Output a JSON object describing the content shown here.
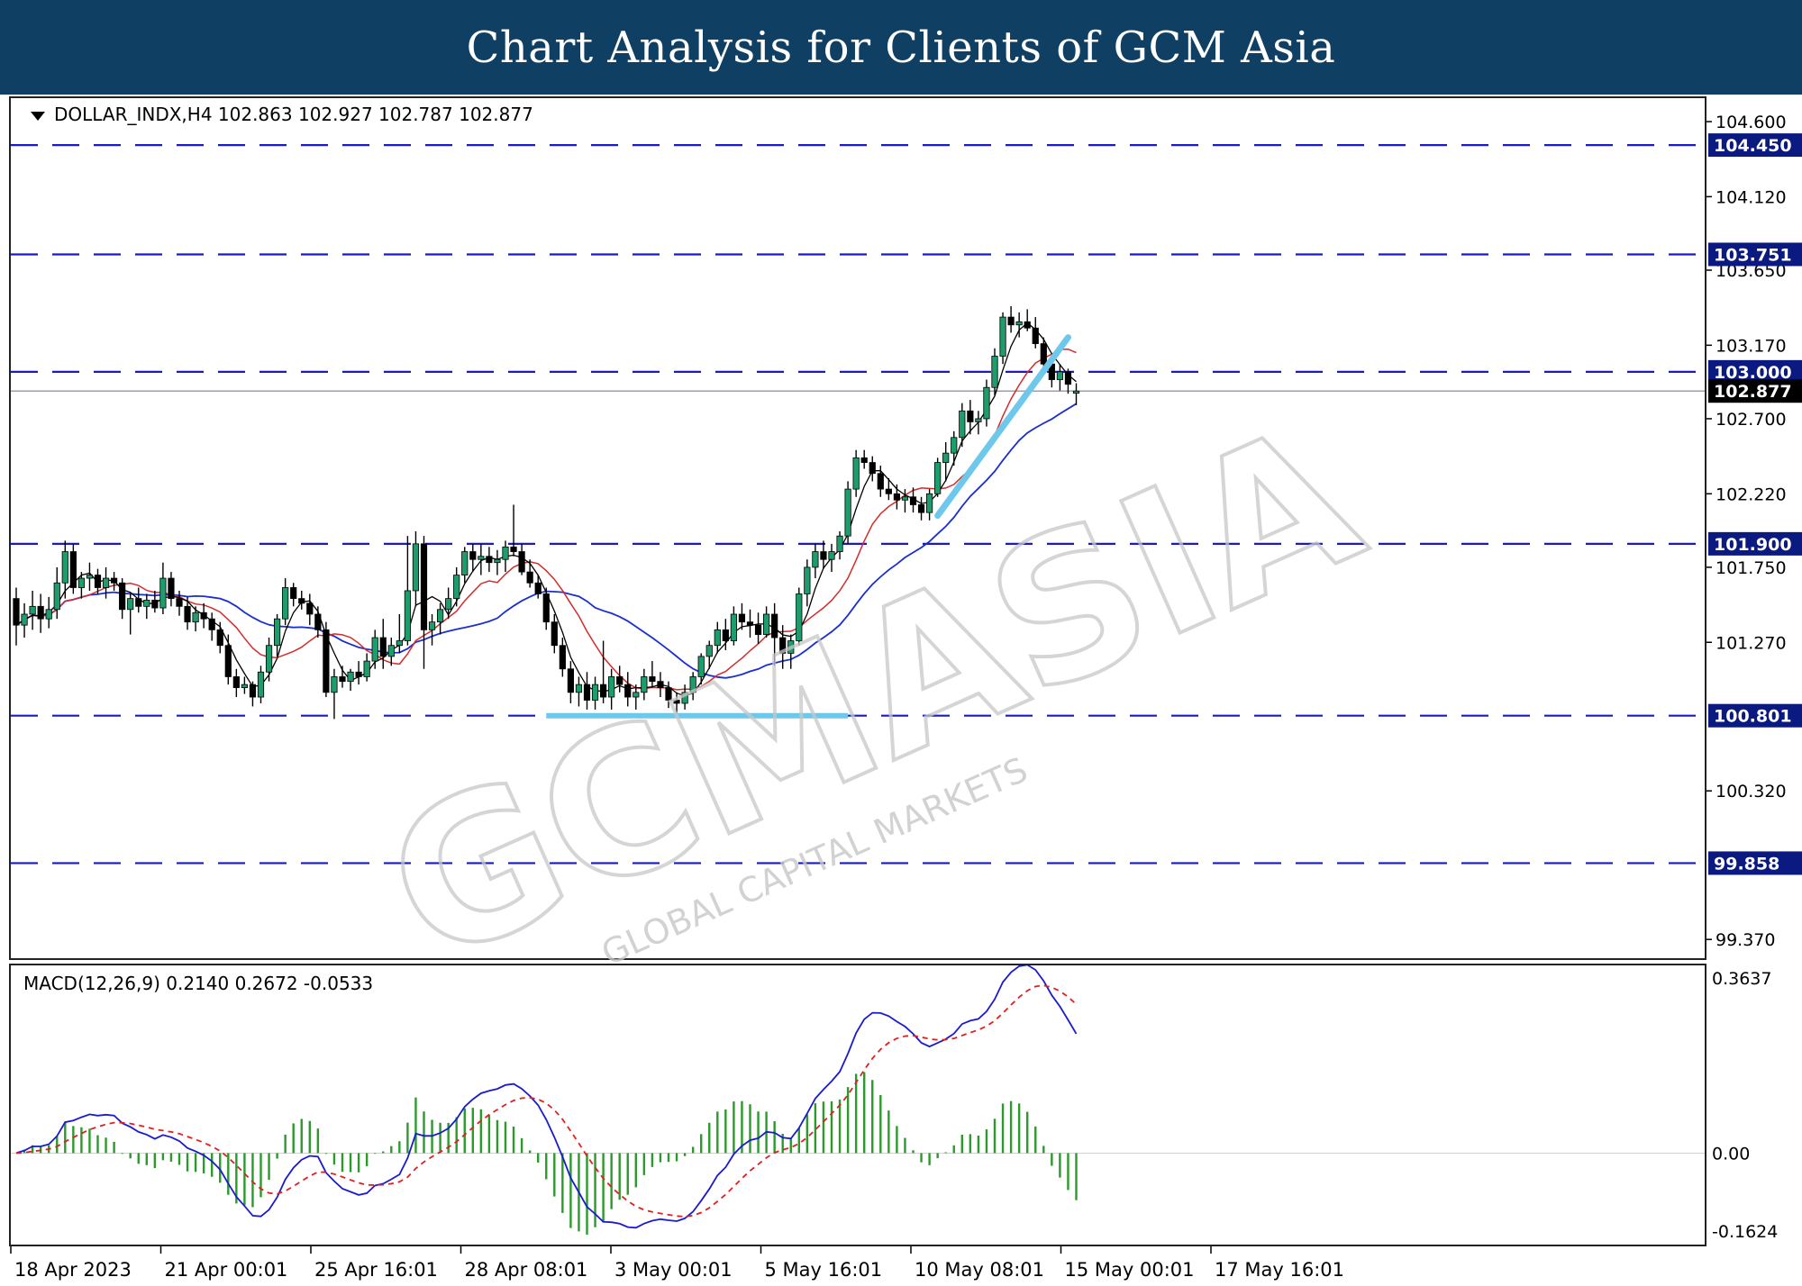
{
  "banner": {
    "title": "Chart Analysis for Clients of GCM Asia"
  },
  "watermark": {
    "brand": "GCMASIA",
    "tagline": "GLOBAL CAPITAL MARKETS"
  },
  "colors": {
    "banner_bg": "#0f3f63",
    "level_line": "#1a1ac8",
    "level_label_bg": "#0a1a80",
    "bull_candle": "#1f9c6b",
    "bear_candle": "#000000",
    "ma_fast": "#000000",
    "ma_mid": "#d42b2b",
    "ma_slow": "#1a2fd0",
    "highlight": "#6ec8ec",
    "macd_line": "#1a1ad0",
    "macd_signal": "#e02020",
    "macd_hist": "#2a9a2a"
  },
  "chart_data": [
    {
      "type": "candlestick",
      "symbol": "DOLLAR_INDX,H4",
      "header": "DOLLAR_INDX,H4  102.863 102.927 102.787 102.877",
      "ohlc": {
        "open": "102.863",
        "high": "102.927",
        "low": "102.787",
        "close": "102.877"
      },
      "ylim": [
        99.25,
        104.75
      ],
      "y_ticks": [
        "104.600",
        "104.120",
        "103.650",
        "103.170",
        "102.700",
        "102.220",
        "101.750",
        "101.270",
        "100.320",
        "99.370"
      ],
      "levels": [
        "104.450",
        "103.751",
        "103.000",
        "101.900",
        "100.801",
        "99.858"
      ],
      "current_price": "102.877",
      "x_ticks": [
        "18 Apr 2023",
        "21 Apr 00:01",
        "25 Apr 16:01",
        "28 Apr 08:01",
        "3 May 00:01",
        "5 May 16:01",
        "10 May 08:01",
        "15 May 00:01",
        "17 May 16:01"
      ],
      "support_band": {
        "value": 100.801,
        "from_bar": 65,
        "to_bar": 102
      },
      "trendline": {
        "from_bar": 113,
        "from_price": 102.08,
        "to_bar": 129,
        "to_price": 103.22
      },
      "candles": [
        [
          101.55,
          101.62,
          101.25,
          101.38
        ],
        [
          101.38,
          101.52,
          101.3,
          101.45
        ],
        [
          101.45,
          101.6,
          101.35,
          101.5
        ],
        [
          101.5,
          101.58,
          101.33,
          101.42
        ],
        [
          101.42,
          101.56,
          101.36,
          101.48
        ],
        [
          101.48,
          101.75,
          101.42,
          101.65
        ],
        [
          101.65,
          101.92,
          101.55,
          101.85
        ],
        [
          101.85,
          101.9,
          101.58,
          101.62
        ],
        [
          101.62,
          101.72,
          101.55,
          101.68
        ],
        [
          101.68,
          101.78,
          101.6,
          101.7
        ],
        [
          101.7,
          101.74,
          101.58,
          101.62
        ],
        [
          101.62,
          101.75,
          101.55,
          101.68
        ],
        [
          101.68,
          101.72,
          101.6,
          101.65
        ],
        [
          101.65,
          101.68,
          101.42,
          101.48
        ],
        [
          101.48,
          101.58,
          101.32,
          101.55
        ],
        [
          101.55,
          101.62,
          101.46,
          101.5
        ],
        [
          101.5,
          101.58,
          101.42,
          101.54
        ],
        [
          101.54,
          101.6,
          101.46,
          101.49
        ],
        [
          101.49,
          101.78,
          101.45,
          101.68
        ],
        [
          101.68,
          101.72,
          101.5,
          101.55
        ],
        [
          101.55,
          101.6,
          101.44,
          101.5
        ],
        [
          101.5,
          101.56,
          101.35,
          101.4
        ],
        [
          101.4,
          101.5,
          101.34,
          101.46
        ],
        [
          101.46,
          101.52,
          101.36,
          101.42
        ],
        [
          101.42,
          101.46,
          101.28,
          101.35
        ],
        [
          101.35,
          101.4,
          101.2,
          101.25
        ],
        [
          101.25,
          101.32,
          101.0,
          101.05
        ],
        [
          101.05,
          101.1,
          100.92,
          100.98
        ],
        [
          100.98,
          101.05,
          100.94,
          101.0
        ],
        [
          101.0,
          101.02,
          100.86,
          100.92
        ],
        [
          100.92,
          101.12,
          100.88,
          101.08
        ],
        [
          101.08,
          101.3,
          101.02,
          101.25
        ],
        [
          101.25,
          101.45,
          101.18,
          101.42
        ],
        [
          101.42,
          101.68,
          101.38,
          101.62
        ],
        [
          101.62,
          101.65,
          101.5,
          101.55
        ],
        [
          101.55,
          101.6,
          101.48,
          101.52
        ],
        [
          101.52,
          101.58,
          101.38,
          101.45
        ],
        [
          101.45,
          101.5,
          101.3,
          101.35
        ],
        [
          101.35,
          101.4,
          100.92,
          100.95
        ],
        [
          100.95,
          101.1,
          100.78,
          101.05
        ],
        [
          101.05,
          101.12,
          100.98,
          101.02
        ],
        [
          101.02,
          101.1,
          100.96,
          101.08
        ],
        [
          101.08,
          101.15,
          101.0,
          101.05
        ],
        [
          101.05,
          101.2,
          101.02,
          101.15
        ],
        [
          101.15,
          101.35,
          101.1,
          101.3
        ],
        [
          101.3,
          101.42,
          101.1,
          101.18
        ],
        [
          101.18,
          101.3,
          101.12,
          101.25
        ],
        [
          101.25,
          101.45,
          101.2,
          101.28
        ],
        [
          101.28,
          101.95,
          101.25,
          101.6
        ],
        [
          101.6,
          101.98,
          101.5,
          101.9
        ],
        [
          101.9,
          101.95,
          101.1,
          101.35
        ],
        [
          101.35,
          101.45,
          101.25,
          101.4
        ],
        [
          101.4,
          101.52,
          101.32,
          101.48
        ],
        [
          101.48,
          101.62,
          101.42,
          101.55
        ],
        [
          101.55,
          101.75,
          101.5,
          101.7
        ],
        [
          101.7,
          101.88,
          101.65,
          101.85
        ],
        [
          101.85,
          101.9,
          101.72,
          101.8
        ],
        [
          101.8,
          101.9,
          101.7,
          101.82
        ],
        [
          101.82,
          101.88,
          101.72,
          101.78
        ],
        [
          101.78,
          101.86,
          101.7,
          101.8
        ],
        [
          101.8,
          101.92,
          101.72,
          101.88
        ],
        [
          101.88,
          102.15,
          101.82,
          101.85
        ],
        [
          101.85,
          101.9,
          101.7,
          101.72
        ],
        [
          101.72,
          101.8,
          101.62,
          101.65
        ],
        [
          101.65,
          101.7,
          101.55,
          101.58
        ],
        [
          101.58,
          101.62,
          101.35,
          101.4
        ],
        [
          101.4,
          101.45,
          101.2,
          101.25
        ],
        [
          101.25,
          101.3,
          101.05,
          101.1
        ],
        [
          101.1,
          101.15,
          100.88,
          100.95
        ],
        [
          100.95,
          101.05,
          100.86,
          101.0
        ],
        [
          101.0,
          101.08,
          100.84,
          100.9
        ],
        [
          100.9,
          101.05,
          100.84,
          101.0
        ],
        [
          101.0,
          101.28,
          100.88,
          100.92
        ],
        [
          100.92,
          101.1,
          100.84,
          101.05
        ],
        [
          101.05,
          101.12,
          100.95,
          101.0
        ],
        [
          101.0,
          101.08,
          100.86,
          100.92
        ],
        [
          100.92,
          101.0,
          100.84,
          100.95
        ],
        [
          100.95,
          101.1,
          100.9,
          101.05
        ],
        [
          101.05,
          101.15,
          100.98,
          101.02
        ],
        [
          101.02,
          101.08,
          100.92,
          100.98
        ],
        [
          100.98,
          101.02,
          100.85,
          100.9
        ],
        [
          100.9,
          100.95,
          100.82,
          100.88
        ],
        [
          100.88,
          101.0,
          100.84,
          100.95
        ],
        [
          100.95,
          101.08,
          100.9,
          101.05
        ],
        [
          101.05,
          101.2,
          101.0,
          101.18
        ],
        [
          101.18,
          101.28,
          101.1,
          101.25
        ],
        [
          101.25,
          101.4,
          101.2,
          101.35
        ],
        [
          101.35,
          101.42,
          101.22,
          101.28
        ],
        [
          101.28,
          101.5,
          101.25,
          101.45
        ],
        [
          101.45,
          101.52,
          101.35,
          101.4
        ],
        [
          101.4,
          101.48,
          101.3,
          101.38
        ],
        [
          101.38,
          101.46,
          101.26,
          101.32
        ],
        [
          101.32,
          101.5,
          101.3,
          101.45
        ],
        [
          101.45,
          101.52,
          101.12,
          101.3
        ],
        [
          101.3,
          101.38,
          101.1,
          101.2
        ],
        [
          101.2,
          101.32,
          101.1,
          101.28
        ],
        [
          101.28,
          101.62,
          101.25,
          101.58
        ],
        [
          101.58,
          101.8,
          101.5,
          101.75
        ],
        [
          101.75,
          101.9,
          101.68,
          101.85
        ],
        [
          101.85,
          101.92,
          101.74,
          101.8
        ],
        [
          101.8,
          101.9,
          101.72,
          101.85
        ],
        [
          101.85,
          101.98,
          101.8,
          101.95
        ],
        [
          101.95,
          102.3,
          101.9,
          102.25
        ],
        [
          102.25,
          102.5,
          102.2,
          102.45
        ],
        [
          102.45,
          102.5,
          102.38,
          102.42
        ],
        [
          102.42,
          102.46,
          102.3,
          102.35
        ],
        [
          102.35,
          102.4,
          102.2,
          102.25
        ],
        [
          102.25,
          102.32,
          102.18,
          102.22
        ],
        [
          102.22,
          102.28,
          102.12,
          102.18
        ],
        [
          102.18,
          102.25,
          102.1,
          102.2
        ],
        [
          102.2,
          102.26,
          102.1,
          102.15
        ],
        [
          102.15,
          102.2,
          102.05,
          102.1
        ],
        [
          102.1,
          102.25,
          102.05,
          102.22
        ],
        [
          102.22,
          102.45,
          102.2,
          102.42
        ],
        [
          102.42,
          102.55,
          102.3,
          102.48
        ],
        [
          102.48,
          102.62,
          102.4,
          102.58
        ],
        [
          102.58,
          102.8,
          102.52,
          102.75
        ],
        [
          102.75,
          102.82,
          102.6,
          102.68
        ],
        [
          102.68,
          102.75,
          102.6,
          102.7
        ],
        [
          102.7,
          102.95,
          102.65,
          102.9
        ],
        [
          102.9,
          103.15,
          102.85,
          103.1
        ],
        [
          103.1,
          103.38,
          103.05,
          103.35
        ],
        [
          103.35,
          103.42,
          103.25,
          103.3
        ],
        [
          103.3,
          103.38,
          103.22,
          103.32
        ],
        [
          103.32,
          103.4,
          103.26,
          103.28
        ],
        [
          103.28,
          103.35,
          103.15,
          103.18
        ],
        [
          103.18,
          103.22,
          103.02,
          103.05
        ],
        [
          103.05,
          103.1,
          102.9,
          102.95
        ],
        [
          102.95,
          103.05,
          102.88,
          103.0
        ],
        [
          103.0,
          103.02,
          102.86,
          102.92
        ],
        [
          102.863,
          102.927,
          102.787,
          102.877
        ]
      ]
    },
    {
      "type": "macd",
      "label": "MACD(12,26,9) 0.2140 0.2672 -0.0533",
      "params": "12,26,9",
      "values": {
        "macd": "0.2140",
        "signal": "0.2672",
        "histogram": "-0.0533"
      },
      "ylim": [
        -0.19,
        0.39
      ],
      "y_ticks": [
        "0.3637",
        "0.00",
        "-0.1624"
      ]
    }
  ]
}
